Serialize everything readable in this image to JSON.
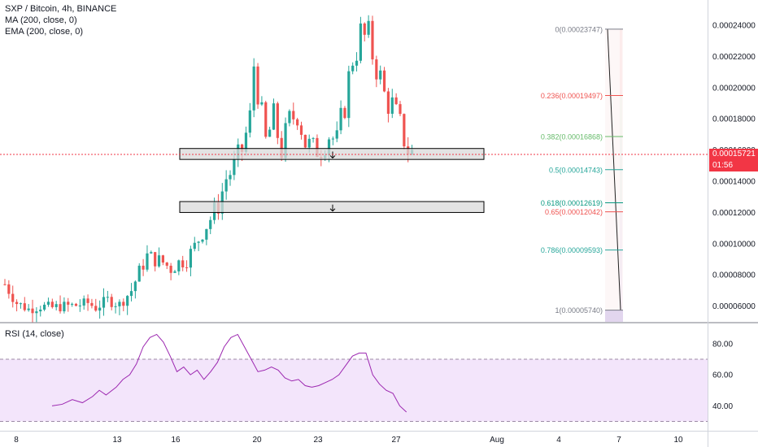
{
  "legend": {
    "title": "SXP / Bitcoin, 4h, BINANCE",
    "ma": "MA (200, close, 0)",
    "ema": "EMA (200, close, 0)",
    "rsi": "RSI (14, close)"
  },
  "colors": {
    "up": "#26a69a",
    "down": "#ef5350",
    "rsi_line": "#9c27b0",
    "rsi_band": "#f3e5fb",
    "zone_fill": "#d9d9d9",
    "price_line": "#f23645"
  },
  "last_price": "0.00015721",
  "countdown": "01:56",
  "price_axis_labels": [
    "0.00024000",
    "0.00022000",
    "0.00020000",
    "0.00018000",
    "0.00016000",
    "0.00014000",
    "0.00012000",
    "0.00010000",
    "0.00008000",
    "0.00006000"
  ],
  "rsi_axis_labels": [
    "80.00",
    "60.00",
    "40.00"
  ],
  "date_labels": [
    "8",
    "13",
    "16",
    "20",
    "23",
    "27",
    "Aug",
    "4",
    "7",
    "10"
  ],
  "fib_levels": [
    {
      "label": "0(0.00023747)",
      "color": "#787b86"
    },
    {
      "label": "0.236(0.00019497)",
      "color": "#ef5350"
    },
    {
      "label": "0.382(0.00016868)",
      "color": "#66bb6a"
    },
    {
      "label": "0.5(0.00014743)",
      "color": "#26a69a"
    },
    {
      "label": "0.618(0.00012619)",
      "color": "#089981"
    },
    {
      "label": "0.65(0.00012042)",
      "color": "#ef5350"
    },
    {
      "label": "0.786(0.00009593)",
      "color": "#26a69a"
    },
    {
      "label": "1(0.00005740)",
      "color": "#787b86"
    }
  ],
  "chart_data": {
    "type": "candlestick",
    "price_range": [
      5.2e-05,
      0.000252
    ],
    "rsi_range": [
      25,
      92
    ],
    "support_zones": [
      [
        0.000154,
        0.000161
      ],
      [
        0.00012,
        0.000127
      ]
    ],
    "price_path": [
      [
        0,
        7.4e-05
      ],
      [
        3,
        6.2e-05
      ],
      [
        6,
        5.8e-05
      ],
      [
        9,
        6e-05
      ],
      [
        12,
        5.9e-05
      ],
      [
        15,
        6e-05
      ],
      [
        18,
        6.05e-05
      ],
      [
        21,
        6.2e-05
      ],
      [
        23,
        5.9e-05
      ],
      [
        26,
        6.4e-05
      ],
      [
        29,
        6.1e-05
      ],
      [
        32,
        7e-05
      ],
      [
        34,
        8.2e-05
      ],
      [
        36,
        9.2e-05
      ],
      [
        38,
        9e-05
      ],
      [
        40,
        8.8e-05
      ],
      [
        42,
        8.4e-05
      ],
      [
        44,
        8.8e-05
      ],
      [
        46,
        9e-05
      ],
      [
        48,
        9.8e-05
      ],
      [
        50,
        0.000108
      ],
      [
        52,
        0.000116
      ],
      [
        54,
        0.000125
      ],
      [
        56,
        0.000142
      ],
      [
        58,
        0.000149
      ],
      [
        60,
        0.00016
      ],
      [
        62,
        0.00018
      ],
      [
        63,
        0.000215
      ],
      [
        64,
        0.0002
      ],
      [
        65,
        0.00018
      ],
      [
        66,
        0.000165
      ],
      [
        68,
        0.00018
      ],
      [
        70,
        0.00016
      ],
      [
        72,
        0.000178
      ],
      [
        74,
        0.000185
      ],
      [
        76,
        0.000165
      ],
      [
        78,
        0.00016
      ],
      [
        80,
        0.000162
      ],
      [
        82,
        0.00017
      ],
      [
        84,
        0.000165
      ],
      [
        86,
        0.00019
      ],
      [
        88,
        0.00022
      ],
      [
        90,
        0.000233
      ],
      [
        92,
        0.00023
      ],
      [
        94,
        0.000215
      ],
      [
        96,
        0.000195
      ],
      [
        98,
        0.000188
      ],
      [
        100,
        0.000175
      ],
      [
        102,
        0.00016
      ],
      [
        103,
        0.000158
      ]
    ],
    "rsi_path": [
      [
        0,
        40
      ],
      [
        3,
        41
      ],
      [
        6,
        44
      ],
      [
        9,
        42
      ],
      [
        12,
        46
      ],
      [
        14,
        50
      ],
      [
        16,
        47
      ],
      [
        19,
        52
      ],
      [
        21,
        57
      ],
      [
        23,
        60
      ],
      [
        25,
        67
      ],
      [
        27,
        78
      ],
      [
        29,
        84
      ],
      [
        31,
        86
      ],
      [
        33,
        81
      ],
      [
        35,
        72
      ],
      [
        37,
        62
      ],
      [
        39,
        65
      ],
      [
        41,
        60
      ],
      [
        43,
        63
      ],
      [
        45,
        57
      ],
      [
        47,
        62
      ],
      [
        49,
        68
      ],
      [
        51,
        78
      ],
      [
        53,
        84
      ],
      [
        55,
        86
      ],
      [
        57,
        78
      ],
      [
        59,
        70
      ],
      [
        61,
        62
      ],
      [
        63,
        63
      ],
      [
        65,
        65
      ],
      [
        67,
        63
      ],
      [
        69,
        58
      ],
      [
        71,
        56
      ],
      [
        73,
        57
      ],
      [
        75,
        53
      ],
      [
        77,
        52
      ],
      [
        79,
        53
      ],
      [
        81,
        55
      ],
      [
        83,
        57
      ],
      [
        85,
        60
      ],
      [
        87,
        66
      ],
      [
        89,
        72
      ],
      [
        91,
        74
      ],
      [
        93,
        74
      ],
      [
        95,
        60
      ],
      [
        97,
        54
      ],
      [
        99,
        50
      ],
      [
        101,
        48
      ],
      [
        103,
        40
      ],
      [
        105,
        36
      ]
    ]
  }
}
